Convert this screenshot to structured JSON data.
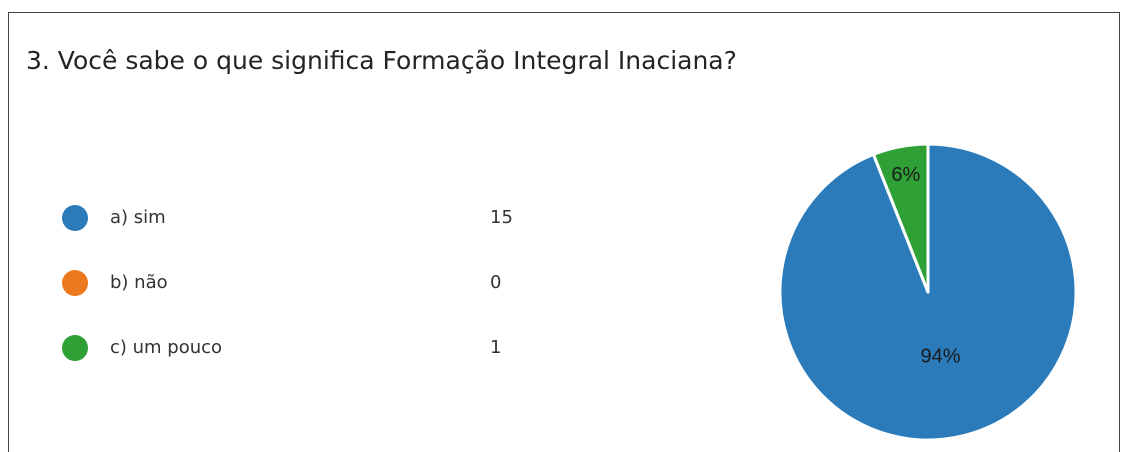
{
  "chart_data": {
    "type": "pie",
    "title": "3. Você sabe o que significa Formação Integral Inaciana?",
    "categories": [
      "a) sim",
      "b) não",
      "c) um pouco"
    ],
    "counts": [
      15,
      0,
      1
    ],
    "values": [
      94,
      0,
      6
    ],
    "value_labels": [
      "94%",
      null,
      "6%"
    ],
    "colors": [
      "#2b7bba",
      "#ec7a1c",
      "#2fa036"
    ]
  }
}
